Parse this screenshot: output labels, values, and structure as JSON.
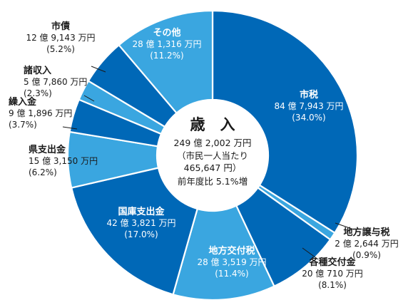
{
  "chart_data": {
    "type": "pie",
    "title": "",
    "center": {
      "title": "歳　入",
      "total": "249 億 2,002 万円",
      "per_capita_line1": "（市民一人当たり",
      "per_capita_line2": "465,647 円）",
      "change": "前年度比 5.1%増"
    },
    "slices": [
      {
        "name": "市税",
        "amount": "84 億 7,943 万円",
        "pct_label": "(34.0%)",
        "value": 34.0,
        "color": "#0068b7"
      },
      {
        "name": "地方譲与税",
        "amount": "2 億 2,644 万円",
        "pct_label": "(0.9%)",
        "value": 0.9,
        "color": "#3aa6e0"
      },
      {
        "name": "各種交付金",
        "amount": "20 億 710 万円",
        "pct_label": "(8.1%)",
        "value": 8.1,
        "color": "#0068b7"
      },
      {
        "name": "地方交付税",
        "amount": "28 億 3,519 万円",
        "pct_label": "(11.4%)",
        "value": 11.4,
        "color": "#3aa6e0"
      },
      {
        "name": "国庫支出金",
        "amount": "42 億 3,821 万円",
        "pct_label": "(17.0%)",
        "value": 17.0,
        "color": "#0068b7"
      },
      {
        "name": "県支出金",
        "amount": "15 億 3,150 万円",
        "pct_label": "(6.2%)",
        "value": 6.2,
        "color": "#3aa6e0"
      },
      {
        "name": "繰入金",
        "amount": "9 億 1,896 万円",
        "pct_label": "(3.7%)",
        "value": 3.7,
        "color": "#0068b7"
      },
      {
        "name": "諸収入",
        "amount": "5 億 7,860 万円",
        "pct_label": "(2.3%)",
        "value": 2.3,
        "color": "#3aa6e0"
      },
      {
        "name": "市債",
        "amount": "12 億 9,143 万円",
        "pct_label": "(5.2%)",
        "value": 5.2,
        "color": "#0068b7"
      },
      {
        "name": "その他",
        "amount": "28 億 1,316 万円",
        "pct_label": "(11.2%)",
        "value": 11.2,
        "color": "#3aa6e0"
      }
    ]
  }
}
